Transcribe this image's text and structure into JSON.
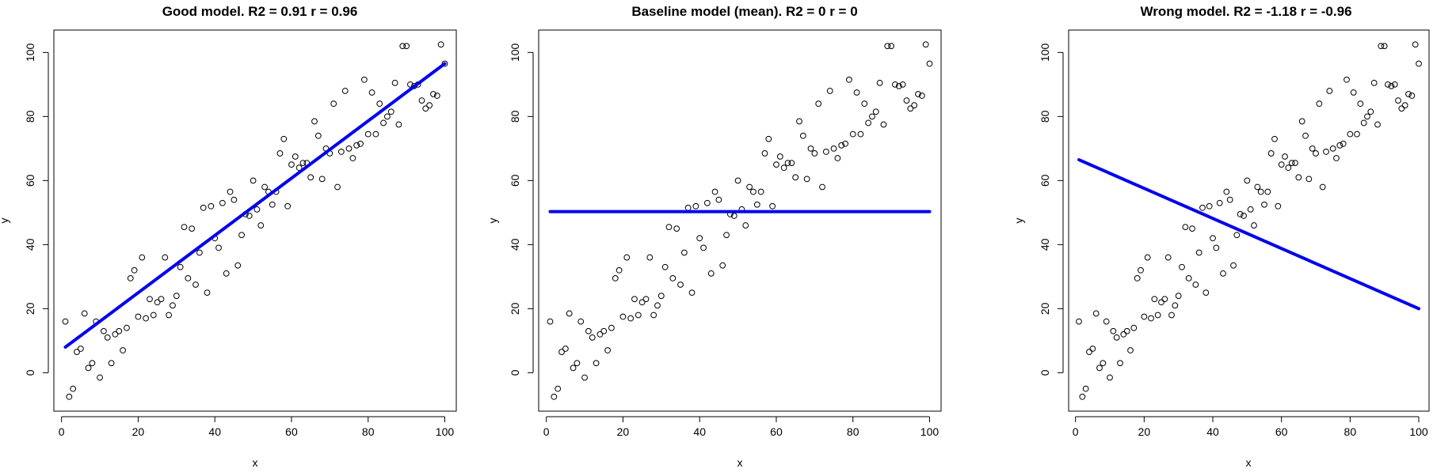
{
  "chart_data": [
    {
      "type": "scatter",
      "title": "Good model. R2 = 0.91 r = 0.96",
      "xlabel": "x",
      "ylabel": "y",
      "xticks": [
        "0",
        "20",
        "40",
        "60",
        "80",
        "100"
      ],
      "yticks": [
        "0",
        "20",
        "40",
        "60",
        "80",
        "100"
      ],
      "xlim": [
        -2,
        103
      ],
      "ylim": [
        -12,
        107
      ],
      "grid": false,
      "line": {
        "name": "model",
        "color": "#0000EE",
        "x": [
          1,
          100
        ],
        "y": [
          8,
          96.5
        ]
      }
    },
    {
      "type": "scatter",
      "title": "Baseline model (mean). R2 =  0 r = 0",
      "xlabel": "x",
      "ylabel": "y",
      "xticks": [
        "0",
        "20",
        "40",
        "60",
        "80",
        "100"
      ],
      "yticks": [
        "0",
        "20",
        "40",
        "60",
        "80",
        "100"
      ],
      "xlim": [
        -2,
        103
      ],
      "ylim": [
        -12,
        107
      ],
      "grid": false,
      "line": {
        "name": "model",
        "color": "#0000EE",
        "x": [
          1,
          100
        ],
        "y": [
          50.3,
          50.3
        ]
      }
    },
    {
      "type": "scatter",
      "title": "Wrong model. R2 =  -1.18 r = -0.96",
      "xlabel": "x",
      "ylabel": "y",
      "xticks": [
        "0",
        "20",
        "40",
        "60",
        "80",
        "100"
      ],
      "yticks": [
        "0",
        "20",
        "40",
        "60",
        "80",
        "100"
      ],
      "xlim": [
        -2,
        103
      ],
      "ylim": [
        -12,
        107
      ],
      "grid": false,
      "line": {
        "name": "model",
        "color": "#0000EE",
        "x": [
          1,
          100
        ],
        "y": [
          66.5,
          20
        ]
      }
    }
  ],
  "points": {
    "x": [
      1,
      2,
      3,
      4,
      5,
      6,
      7,
      8,
      9,
      10,
      11,
      12,
      13,
      14,
      15,
      16,
      17,
      18,
      19,
      20,
      21,
      22,
      23,
      24,
      25,
      26,
      27,
      28,
      29,
      30,
      31,
      32,
      33,
      34,
      35,
      36,
      37,
      38,
      39,
      40,
      41,
      42,
      43,
      44,
      45,
      46,
      47,
      48,
      49,
      50,
      51,
      52,
      53,
      54,
      55,
      56,
      57,
      58,
      59,
      60,
      61,
      62,
      63,
      64,
      65,
      66,
      67,
      68,
      69,
      70,
      71,
      72,
      73,
      74,
      75,
      76,
      77,
      78,
      79,
      80,
      81,
      82,
      83,
      84,
      85,
      86,
      87,
      88,
      89,
      90,
      91,
      92,
      93,
      94,
      95,
      96,
      97,
      98,
      99,
      100
    ],
    "y": [
      16,
      -7.5,
      -5,
      6.5,
      7.5,
      18.5,
      1.5,
      3,
      16,
      -1.5,
      13,
      11,
      3,
      12,
      13,
      7,
      14,
      29.5,
      32,
      17.5,
      36,
      17,
      23,
      18,
      22,
      23,
      36,
      18,
      21,
      24,
      33,
      45.5,
      29.5,
      45,
      27.5,
      37.5,
      51.5,
      25,
      52,
      42,
      39,
      53,
      31,
      56.5,
      54,
      33.5,
      43,
      49.5,
      49,
      60,
      51,
      46,
      58,
      56.5,
      52.5,
      56.5,
      68.5,
      73,
      52,
      65,
      67.5,
      64,
      65.5,
      65.5,
      61,
      78.5,
      74,
      60.5,
      70,
      68.5,
      84,
      58,
      69,
      88,
      70,
      67,
      71,
      71.5,
      91.5,
      74.5,
      87.5,
      74.5,
      84,
      78,
      80,
      81.5,
      90.5,
      77.5,
      102,
      102,
      90,
      89.5,
      90,
      85,
      82.5,
      83.5,
      87,
      86.5,
      102.5,
      96.5
    ]
  }
}
